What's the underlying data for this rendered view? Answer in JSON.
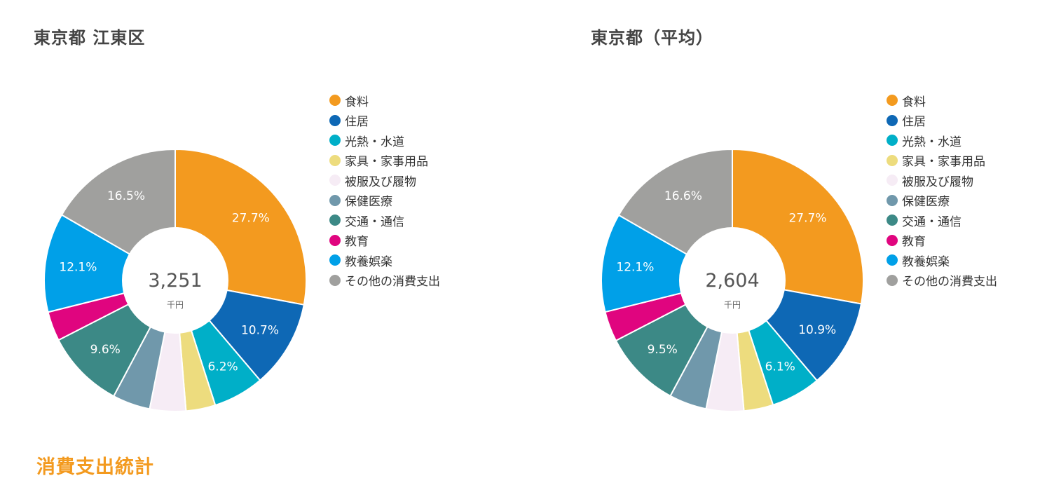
{
  "footer": {
    "title": "消費支出統計",
    "color": "#F39A1F"
  },
  "chart_data": [
    {
      "type": "pie",
      "style": "donut",
      "title": "東京都 江東区",
      "center_value": "3,251",
      "center_unit": "千円",
      "legend_position": "right",
      "categories": [
        "食料",
        "住居",
        "光熱・水道",
        "家具・家事用品",
        "被服及び履物",
        "保健医療",
        "交通・通信",
        "教育",
        "教養娯楽",
        "その他の消費支出"
      ],
      "values": [
        27.7,
        10.7,
        6.2,
        3.6,
        4.4,
        4.6,
        9.6,
        3.6,
        12.1,
        16.5
      ],
      "labels": [
        "27.7%",
        "10.7%",
        "6.2%",
        "",
        "",
        "",
        "9.6%",
        "",
        "12.1%",
        "16.5%"
      ],
      "colors": [
        "#F39A1F",
        "#0E68B5",
        "#00AFC8",
        "#EDDC7E",
        "#F6ECF5",
        "#7098AB",
        "#3C8986",
        "#E0057F",
        "#00A0E8",
        "#A0A09E"
      ]
    },
    {
      "type": "pie",
      "style": "donut",
      "title": "東京都（平均）",
      "center_value": "2,604",
      "center_unit": "千円",
      "legend_position": "right",
      "categories": [
        "食料",
        "住居",
        "光熱・水道",
        "家具・家事用品",
        "被服及び履物",
        "保健医療",
        "交通・通信",
        "教育",
        "教養娯楽",
        "その他の消費支出"
      ],
      "values": [
        27.7,
        10.9,
        6.1,
        3.6,
        4.6,
        4.6,
        9.5,
        3.7,
        12.1,
        16.6
      ],
      "labels": [
        "27.7%",
        "10.9%",
        "6.1%",
        "",
        "",
        "",
        "9.5%",
        "",
        "12.1%",
        "16.6%"
      ],
      "colors": [
        "#F39A1F",
        "#0E68B5",
        "#00AFC8",
        "#EDDC7E",
        "#F6ECF5",
        "#7098AB",
        "#3C8986",
        "#E0057F",
        "#00A0E8",
        "#A0A09E"
      ]
    }
  ]
}
